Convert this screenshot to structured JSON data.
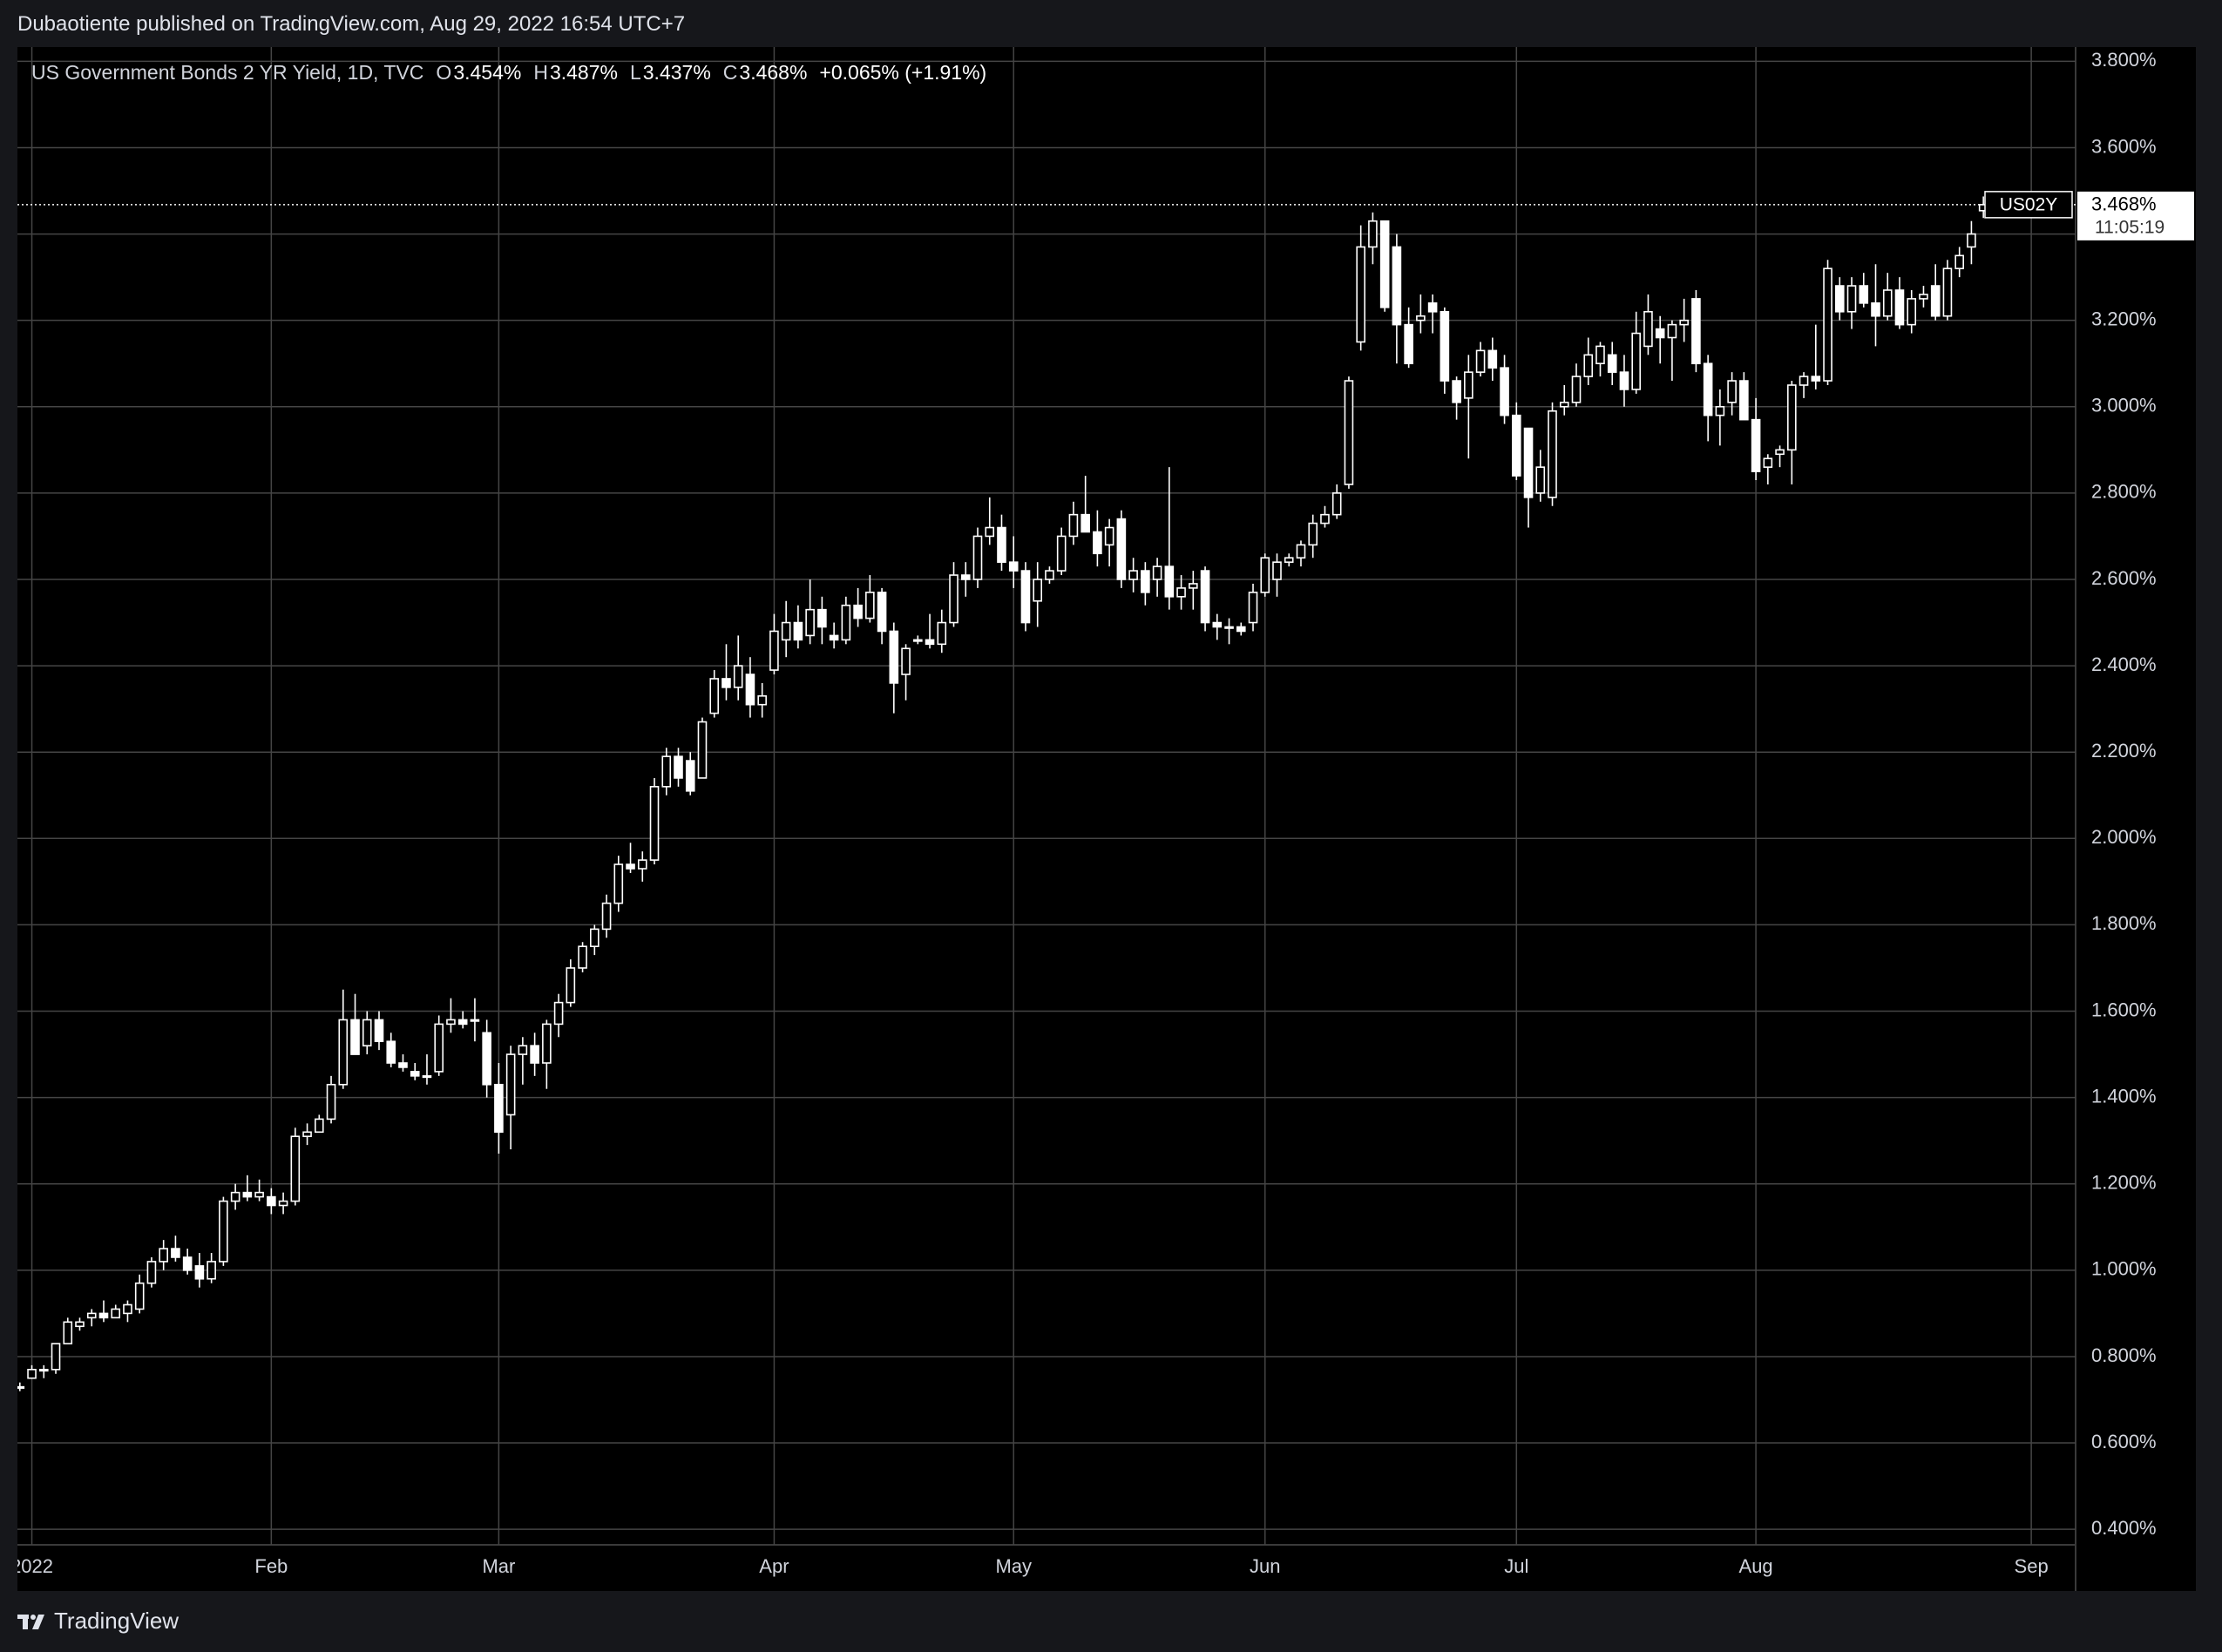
{
  "header": {
    "text": "Dubaotiente published on TradingView.com, Aug 29, 2022 16:54 UTC+7"
  },
  "legend": {
    "symbol": "US Government Bonds 2 YR Yield, 1D, TVC",
    "o_key": "O",
    "open": "3.454%",
    "h_key": "H",
    "high": "3.487%",
    "l_key": "L",
    "low": "3.437%",
    "c_key": "C",
    "close": "3.468%",
    "change": "+0.065% (+1.91%)"
  },
  "footer": {
    "brand": "TradingView"
  },
  "chart_data": {
    "type": "candlestick",
    "candle_color": "#ffffff",
    "hollow_up": true,
    "grid": true,
    "grid_color": "#454545",
    "ylim": [
      0.364,
      3.833
    ],
    "yticks": [
      {
        "value": 0.4,
        "label": "0.400%"
      },
      {
        "value": 0.6,
        "label": "0.600%"
      },
      {
        "value": 0.8,
        "label": "0.800%"
      },
      {
        "value": 1.0,
        "label": "1.000%"
      },
      {
        "value": 1.2,
        "label": "1.200%"
      },
      {
        "value": 1.4,
        "label": "1.400%"
      },
      {
        "value": 1.6,
        "label": "1.600%"
      },
      {
        "value": 1.8,
        "label": "1.800%"
      },
      {
        "value": 2.0,
        "label": "2.000%"
      },
      {
        "value": 2.2,
        "label": "2.200%"
      },
      {
        "value": 2.4,
        "label": "2.400%"
      },
      {
        "value": 2.6,
        "label": "2.600%"
      },
      {
        "value": 2.8,
        "label": "2.800%"
      },
      {
        "value": 3.0,
        "label": "3.000%"
      },
      {
        "value": 3.2,
        "label": "3.200%"
      },
      {
        "value": 3.4,
        "label": "3.400%"
      },
      {
        "value": 3.6,
        "label": "3.600%"
      },
      {
        "value": 3.8,
        "label": "3.800%"
      }
    ],
    "last_price": {
      "symbol": "US02Y",
      "label": "3.468%",
      "countdown": "11:05:19"
    },
    "categories": [
      null,
      "2022",
      null,
      null,
      null,
      null,
      null,
      null,
      null,
      null,
      null,
      null,
      null,
      null,
      null,
      null,
      null,
      null,
      null,
      null,
      null,
      "Feb",
      null,
      null,
      null,
      null,
      null,
      null,
      null,
      null,
      null,
      null,
      null,
      null,
      null,
      null,
      null,
      null,
      null,
      null,
      "Mar",
      null,
      null,
      null,
      null,
      null,
      null,
      null,
      null,
      null,
      null,
      null,
      null,
      null,
      null,
      null,
      null,
      null,
      null,
      null,
      null,
      null,
      null,
      "Apr",
      null,
      null,
      null,
      null,
      null,
      null,
      null,
      null,
      null,
      null,
      null,
      null,
      null,
      null,
      null,
      null,
      null,
      null,
      null,
      "May",
      null,
      null,
      null,
      null,
      null,
      null,
      null,
      null,
      null,
      null,
      null,
      null,
      null,
      null,
      null,
      null,
      null,
      null,
      null,
      null,
      "Jun",
      null,
      null,
      null,
      null,
      null,
      null,
      null,
      null,
      null,
      null,
      null,
      null,
      null,
      null,
      null,
      null,
      null,
      null,
      null,
      null,
      "Jul",
      null,
      null,
      null,
      null,
      null,
      null,
      null,
      null,
      null,
      null,
      null,
      null,
      null,
      null,
      null,
      null,
      null,
      null,
      null,
      "Aug",
      null,
      null,
      null,
      null,
      null,
      null,
      null,
      null,
      null,
      null,
      null,
      null,
      null,
      null,
      null,
      null,
      null,
      null,
      null,
      null,
      null,
      null,
      "Sep"
    ],
    "ohlc": [
      [
        0.73,
        0.74,
        0.72,
        0.73
      ],
      [
        0.75,
        0.78,
        0.75,
        0.77
      ],
      [
        0.77,
        0.78,
        0.75,
        0.77
      ],
      [
        0.77,
        0.83,
        0.76,
        0.83
      ],
      [
        0.83,
        0.89,
        0.83,
        0.88
      ],
      [
        0.87,
        0.89,
        0.86,
        0.88
      ],
      [
        0.89,
        0.91,
        0.87,
        0.9
      ],
      [
        0.9,
        0.93,
        0.88,
        0.89
      ],
      [
        0.89,
        0.92,
        0.89,
        0.91
      ],
      [
        0.9,
        0.93,
        0.88,
        0.92
      ],
      [
        0.91,
        0.99,
        0.9,
        0.97
      ],
      [
        0.97,
        1.03,
        0.96,
        1.02
      ],
      [
        1.02,
        1.07,
        1.0,
        1.05
      ],
      [
        1.05,
        1.08,
        1.02,
        1.03
      ],
      [
        1.03,
        1.05,
        0.99,
        1.0
      ],
      [
        1.01,
        1.04,
        0.96,
        0.98
      ],
      [
        0.98,
        1.04,
        0.97,
        1.02
      ],
      [
        1.02,
        1.17,
        1.01,
        1.16
      ],
      [
        1.16,
        1.2,
        1.14,
        1.18
      ],
      [
        1.18,
        1.22,
        1.16,
        1.17
      ],
      [
        1.17,
        1.21,
        1.16,
        1.18
      ],
      [
        1.17,
        1.19,
        1.13,
        1.15
      ],
      [
        1.15,
        1.18,
        1.13,
        1.16
      ],
      [
        1.16,
        1.33,
        1.15,
        1.31
      ],
      [
        1.31,
        1.34,
        1.29,
        1.32
      ],
      [
        1.32,
        1.36,
        1.32,
        1.35
      ],
      [
        1.35,
        1.45,
        1.34,
        1.43
      ],
      [
        1.43,
        1.65,
        1.42,
        1.58
      ],
      [
        1.58,
        1.64,
        1.5,
        1.5
      ],
      [
        1.52,
        1.6,
        1.5,
        1.58
      ],
      [
        1.58,
        1.6,
        1.51,
        1.53
      ],
      [
        1.53,
        1.55,
        1.47,
        1.48
      ],
      [
        1.48,
        1.5,
        1.46,
        1.47
      ],
      [
        1.46,
        1.48,
        1.44,
        1.45
      ],
      [
        1.45,
        1.5,
        1.43,
        1.45
      ],
      [
        1.46,
        1.59,
        1.45,
        1.57
      ],
      [
        1.57,
        1.63,
        1.55,
        1.58
      ],
      [
        1.58,
        1.6,
        1.56,
        1.57
      ],
      [
        1.58,
        1.63,
        1.53,
        1.58
      ],
      [
        1.55,
        1.58,
        1.4,
        1.43
      ],
      [
        1.43,
        1.48,
        1.27,
        1.32
      ],
      [
        1.36,
        1.52,
        1.28,
        1.5
      ],
      [
        1.5,
        1.54,
        1.43,
        1.52
      ],
      [
        1.52,
        1.55,
        1.45,
        1.48
      ],
      [
        1.48,
        1.58,
        1.42,
        1.57
      ],
      [
        1.57,
        1.64,
        1.54,
        1.62
      ],
      [
        1.62,
        1.72,
        1.61,
        1.7
      ],
      [
        1.7,
        1.76,
        1.69,
        1.75
      ],
      [
        1.75,
        1.8,
        1.73,
        1.79
      ],
      [
        1.79,
        1.87,
        1.77,
        1.85
      ],
      [
        1.85,
        1.96,
        1.83,
        1.94
      ],
      [
        1.94,
        1.99,
        1.92,
        1.93
      ],
      [
        1.93,
        1.97,
        1.9,
        1.95
      ],
      [
        1.95,
        2.14,
        1.94,
        2.12
      ],
      [
        2.12,
        2.21,
        2.1,
        2.19
      ],
      [
        2.19,
        2.21,
        2.12,
        2.14
      ],
      [
        2.18,
        2.2,
        2.1,
        2.11
      ],
      [
        2.14,
        2.28,
        2.14,
        2.27
      ],
      [
        2.29,
        2.39,
        2.28,
        2.37
      ],
      [
        2.37,
        2.45,
        2.32,
        2.35
      ],
      [
        2.35,
        2.47,
        2.32,
        2.4
      ],
      [
        2.38,
        2.42,
        2.28,
        2.31
      ],
      [
        2.31,
        2.36,
        2.28,
        2.33
      ],
      [
        2.39,
        2.52,
        2.38,
        2.48
      ],
      [
        2.46,
        2.55,
        2.42,
        2.5
      ],
      [
        2.5,
        2.54,
        2.44,
        2.46
      ],
      [
        2.47,
        2.6,
        2.45,
        2.53
      ],
      [
        2.53,
        2.56,
        2.45,
        2.49
      ],
      [
        2.47,
        2.5,
        2.44,
        2.46
      ],
      [
        2.46,
        2.56,
        2.45,
        2.54
      ],
      [
        2.54,
        2.58,
        2.49,
        2.51
      ],
      [
        2.51,
        2.61,
        2.5,
        2.57
      ],
      [
        2.57,
        2.58,
        2.45,
        2.48
      ],
      [
        2.48,
        2.5,
        2.29,
        2.36
      ],
      [
        2.38,
        2.45,
        2.32,
        2.44
      ],
      [
        2.46,
        2.47,
        2.45,
        2.46
      ],
      [
        2.46,
        2.52,
        2.44,
        2.45
      ],
      [
        2.45,
        2.53,
        2.43,
        2.5
      ],
      [
        2.5,
        2.64,
        2.49,
        2.61
      ],
      [
        2.61,
        2.64,
        2.56,
        2.6
      ],
      [
        2.6,
        2.72,
        2.58,
        2.7
      ],
      [
        2.7,
        2.79,
        2.68,
        2.72
      ],
      [
        2.72,
        2.75,
        2.62,
        2.64
      ],
      [
        2.64,
        2.7,
        2.58,
        2.62
      ],
      [
        2.62,
        2.64,
        2.48,
        2.5
      ],
      [
        2.55,
        2.64,
        2.49,
        2.6
      ],
      [
        2.6,
        2.63,
        2.59,
        2.62
      ],
      [
        2.62,
        2.72,
        2.61,
        2.7
      ],
      [
        2.7,
        2.78,
        2.68,
        2.75
      ],
      [
        2.75,
        2.84,
        2.72,
        2.71
      ],
      [
        2.71,
        2.76,
        2.63,
        2.66
      ],
      [
        2.68,
        2.74,
        2.63,
        2.72
      ],
      [
        2.74,
        2.76,
        2.58,
        2.6
      ],
      [
        2.6,
        2.65,
        2.57,
        2.62
      ],
      [
        2.62,
        2.64,
        2.54,
        2.57
      ],
      [
        2.6,
        2.65,
        2.56,
        2.63
      ],
      [
        2.63,
        2.86,
        2.53,
        2.56
      ],
      [
        2.56,
        2.61,
        2.53,
        2.58
      ],
      [
        2.58,
        2.62,
        2.53,
        2.59
      ],
      [
        2.62,
        2.63,
        2.48,
        2.5
      ],
      [
        2.5,
        2.52,
        2.46,
        2.49
      ],
      [
        2.49,
        2.51,
        2.45,
        2.49
      ],
      [
        2.49,
        2.5,
        2.47,
        2.48
      ],
      [
        2.5,
        2.59,
        2.48,
        2.57
      ],
      [
        2.57,
        2.66,
        2.56,
        2.65
      ],
      [
        2.6,
        2.66,
        2.56,
        2.64
      ],
      [
        2.64,
        2.66,
        2.63,
        2.65
      ],
      [
        2.65,
        2.69,
        2.63,
        2.68
      ],
      [
        2.68,
        2.75,
        2.65,
        2.73
      ],
      [
        2.73,
        2.77,
        2.72,
        2.75
      ],
      [
        2.75,
        2.82,
        2.74,
        2.8
      ],
      [
        2.82,
        3.07,
        2.81,
        3.06
      ],
      [
        3.15,
        3.42,
        3.13,
        3.37
      ],
      [
        3.37,
        3.45,
        3.33,
        3.43
      ],
      [
        3.43,
        3.43,
        3.22,
        3.23
      ],
      [
        3.37,
        3.4,
        3.1,
        3.19
      ],
      [
        3.19,
        3.23,
        3.09,
        3.1
      ],
      [
        3.2,
        3.26,
        3.17,
        3.21
      ],
      [
        3.24,
        3.26,
        3.17,
        3.22
      ],
      [
        3.22,
        3.23,
        3.03,
        3.06
      ],
      [
        3.06,
        3.07,
        2.97,
        3.01
      ],
      [
        3.02,
        3.12,
        2.88,
        3.08
      ],
      [
        3.08,
        3.15,
        3.07,
        3.13
      ],
      [
        3.13,
        3.16,
        3.06,
        3.09
      ],
      [
        3.09,
        3.12,
        2.96,
        2.98
      ],
      [
        2.98,
        3.01,
        2.83,
        2.84
      ],
      [
        2.95,
        2.95,
        2.72,
        2.79
      ],
      [
        2.8,
        2.9,
        2.78,
        2.86
      ],
      [
        2.79,
        3.01,
        2.77,
        2.99
      ],
      [
        3.0,
        3.05,
        2.98,
        3.01
      ],
      [
        3.01,
        3.1,
        3.0,
        3.07
      ],
      [
        3.07,
        3.16,
        3.05,
        3.12
      ],
      [
        3.1,
        3.15,
        3.07,
        3.14
      ],
      [
        3.12,
        3.15,
        3.05,
        3.08
      ],
      [
        3.08,
        3.12,
        3.0,
        3.04
      ],
      [
        3.04,
        3.22,
        3.03,
        3.17
      ],
      [
        3.14,
        3.26,
        3.12,
        3.22
      ],
      [
        3.18,
        3.21,
        3.1,
        3.16
      ],
      [
        3.16,
        3.2,
        3.06,
        3.19
      ],
      [
        3.19,
        3.25,
        3.15,
        3.2
      ],
      [
        3.25,
        3.27,
        3.08,
        3.1
      ],
      [
        3.1,
        3.12,
        2.92,
        2.98
      ],
      [
        2.98,
        3.04,
        2.91,
        3.0
      ],
      [
        3.01,
        3.08,
        2.98,
        3.06
      ],
      [
        3.06,
        3.08,
        2.97,
        2.97
      ],
      [
        2.97,
        3.02,
        2.83,
        2.85
      ],
      [
        2.86,
        2.89,
        2.82,
        2.88
      ],
      [
        2.89,
        2.91,
        2.86,
        2.9
      ],
      [
        2.9,
        3.06,
        2.82,
        3.05
      ],
      [
        3.05,
        3.08,
        3.02,
        3.07
      ],
      [
        3.07,
        3.19,
        3.04,
        3.06
      ],
      [
        3.06,
        3.34,
        3.05,
        3.32
      ],
      [
        3.28,
        3.3,
        3.2,
        3.22
      ],
      [
        3.22,
        3.3,
        3.18,
        3.28
      ],
      [
        3.28,
        3.31,
        3.23,
        3.24
      ],
      [
        3.24,
        3.33,
        3.14,
        3.21
      ],
      [
        3.21,
        3.31,
        3.2,
        3.27
      ],
      [
        3.27,
        3.3,
        3.18,
        3.19
      ],
      [
        3.19,
        3.27,
        3.17,
        3.25
      ],
      [
        3.25,
        3.28,
        3.23,
        3.26
      ],
      [
        3.28,
        3.33,
        3.2,
        3.21
      ],
      [
        3.21,
        3.34,
        3.2,
        3.32
      ],
      [
        3.32,
        3.37,
        3.3,
        3.35
      ],
      [
        3.37,
        3.43,
        3.33,
        3.4
      ],
      [
        3.454,
        3.487,
        3.437,
        3.468
      ],
      null,
      null,
      null
    ]
  }
}
